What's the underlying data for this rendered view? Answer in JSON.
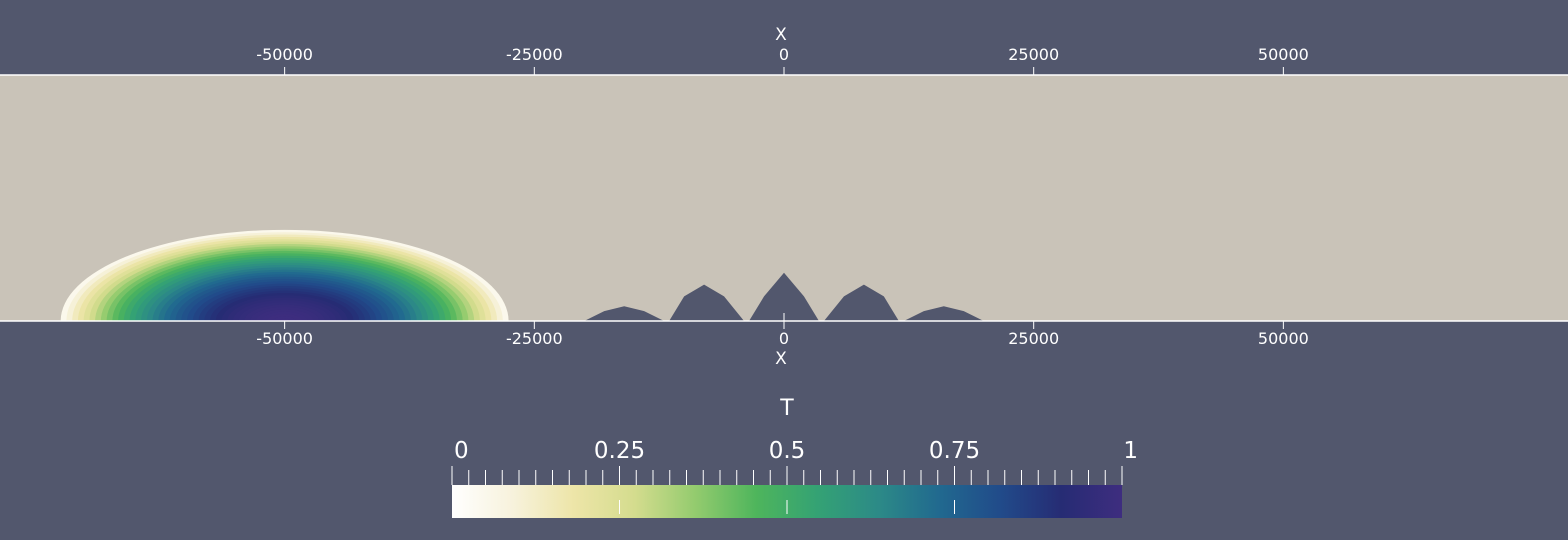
{
  "chart_data": {
    "type": "heatmap",
    "field_name": "T",
    "colors": {
      "background": "#52576d",
      "domain_fill": "#c9c3b8",
      "axis": "#ffffff"
    },
    "x_axis": {
      "label": "X",
      "range": [
        -78500,
        78500
      ],
      "ticks": [
        -50000,
        -25000,
        0,
        25000,
        50000
      ],
      "tick_labels": [
        "-50000",
        "-25000",
        "0",
        "25000",
        "50000"
      ],
      "top_axis": true,
      "bottom_axis": true
    },
    "domain": {
      "height": 25000,
      "base_z": 0
    },
    "topography": {
      "x": [
        -20000,
        -18000,
        -16000,
        -14000,
        -12000,
        -11500,
        -10000,
        -8000,
        -6000,
        -4000,
        -3500,
        -2000,
        0,
        2000,
        3500,
        4000,
        6000,
        8000,
        10000,
        11500,
        12000,
        14000,
        16000,
        18000,
        20000
      ],
      "z": [
        0,
        1000,
        1500,
        1000,
        0,
        0,
        2500,
        3700,
        2500,
        0,
        0,
        2500,
        4900,
        2500,
        0,
        0,
        2500,
        3700,
        2500,
        0,
        0,
        1000,
        1500,
        1000,
        0
      ]
    },
    "tracer_blob": {
      "center_x": -50000,
      "center_z": 0,
      "radius_x": 23000,
      "radius_z": 9500,
      "peak": 1.0
    },
    "colorbar": {
      "title": "T",
      "range": [
        0,
        1
      ],
      "tick_values": [
        0,
        0.25,
        0.5,
        0.75,
        1
      ],
      "tick_labels": [
        "0",
        "0.25",
        "0.5",
        "0.75",
        "1"
      ],
      "minor_ticks": 40,
      "stops": [
        "#ffffff",
        "#f7f2dc",
        "#ede5a8",
        "#d4dc8e",
        "#93cb6e",
        "#4eb55c",
        "#34a274",
        "#2c8a87",
        "#21698f",
        "#214b8a",
        "#262c74",
        "#3e2d7f"
      ]
    }
  }
}
